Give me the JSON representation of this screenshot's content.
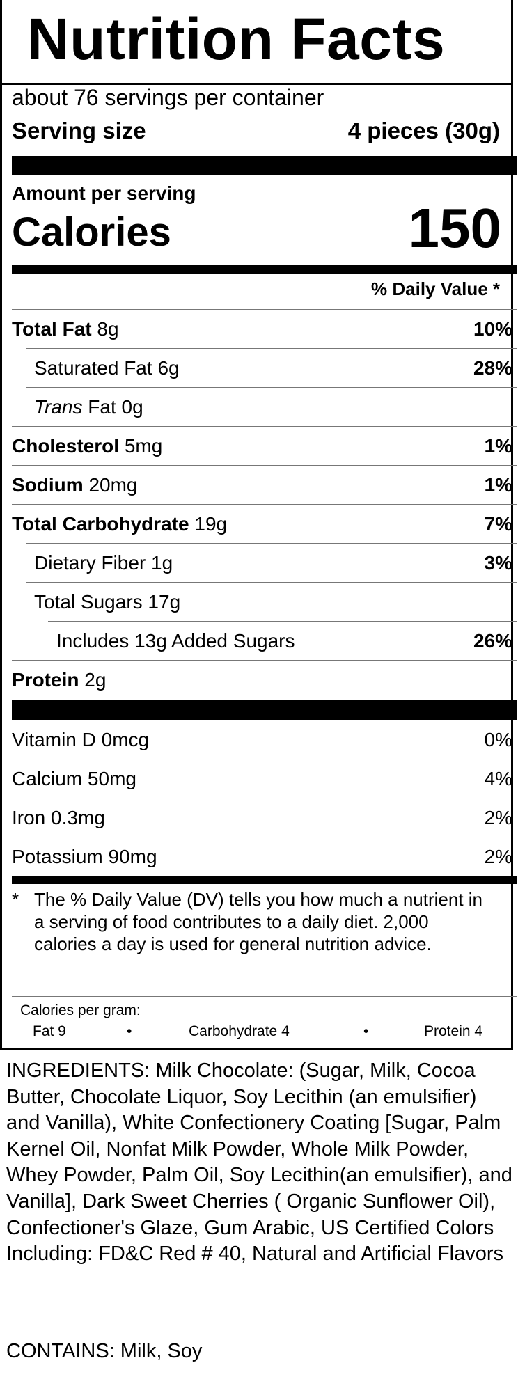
{
  "title": "Nutrition Facts",
  "servings_per_container": "about 76 servings per container",
  "serving_size": {
    "label": "Serving size",
    "value": "4 pieces (30g)"
  },
  "amount_per_serving": "Amount per serving",
  "calories": {
    "label": "Calories",
    "value": "150"
  },
  "daily_value_header": "% Daily Value *",
  "nutrients": [
    {
      "name": "Total Fat",
      "amount": "8g",
      "dv": "10%"
    },
    {
      "name": "Saturated Fat",
      "amount": "6g",
      "dv": "28%"
    },
    {
      "name": "Trans",
      "name_suffix": " Fat",
      "amount": "0g",
      "dv": ""
    },
    {
      "name": "Cholesterol",
      "amount": "5mg",
      "dv": "1%"
    },
    {
      "name": "Sodium",
      "amount": "20mg",
      "dv": "1%"
    },
    {
      "name": "Total Carbohydrate",
      "amount": "19g",
      "dv": "7%"
    },
    {
      "name": "Dietary Fiber",
      "amount": "1g",
      "dv": "3%"
    },
    {
      "name": "Total Sugars",
      "amount": "17g",
      "dv": ""
    },
    {
      "name": "Includes 13g Added Sugars",
      "amount": "",
      "dv": "26%"
    },
    {
      "name": "Protein",
      "amount": "2g",
      "dv": ""
    }
  ],
  "vitamins": [
    {
      "name": "Vitamin D",
      "amount": "0mcg",
      "dv": "0%"
    },
    {
      "name": "Calcium",
      "amount": "50mg",
      "dv": "4%"
    },
    {
      "name": "Iron",
      "amount": "0.3mg",
      "dv": "2%"
    },
    {
      "name": "Potassium",
      "amount": "90mg",
      "dv": "2%"
    }
  ],
  "footnote_star": "*",
  "footnote": "The % Daily Value (DV) tells you how much a nutrient in a serving of food contributes to a daily diet. 2,000 calories a day is used for general nutrition advice.",
  "calories_per_gram": {
    "label": "Calories per gram:",
    "fat": "Fat 9",
    "carbohydrate": "Carbohydrate 4",
    "protein": "Protein 4",
    "bullet": "•"
  },
  "ingredients": "INGREDIENTS: Milk Chocolate: (Sugar, Milk, Cocoa Butter, Chocolate Liquor, Soy Lecithin (an emulsifier) and Vanilla), White Confectionery Coating [Sugar, Palm Kernel Oil, Nonfat Milk Powder, Whole Milk Powder, Whey Powder, Palm Oil, Soy Lecithin(an emulsifier), and Vanilla], Dark Sweet Cherries ( Organic Sunflower Oil), Confectioner's Glaze, Gum Arabic, US Certified Colors Including: FD&C Red # 40, Natural and Artificial Flavors",
  "contains": "CONTAINS: Milk, Soy"
}
